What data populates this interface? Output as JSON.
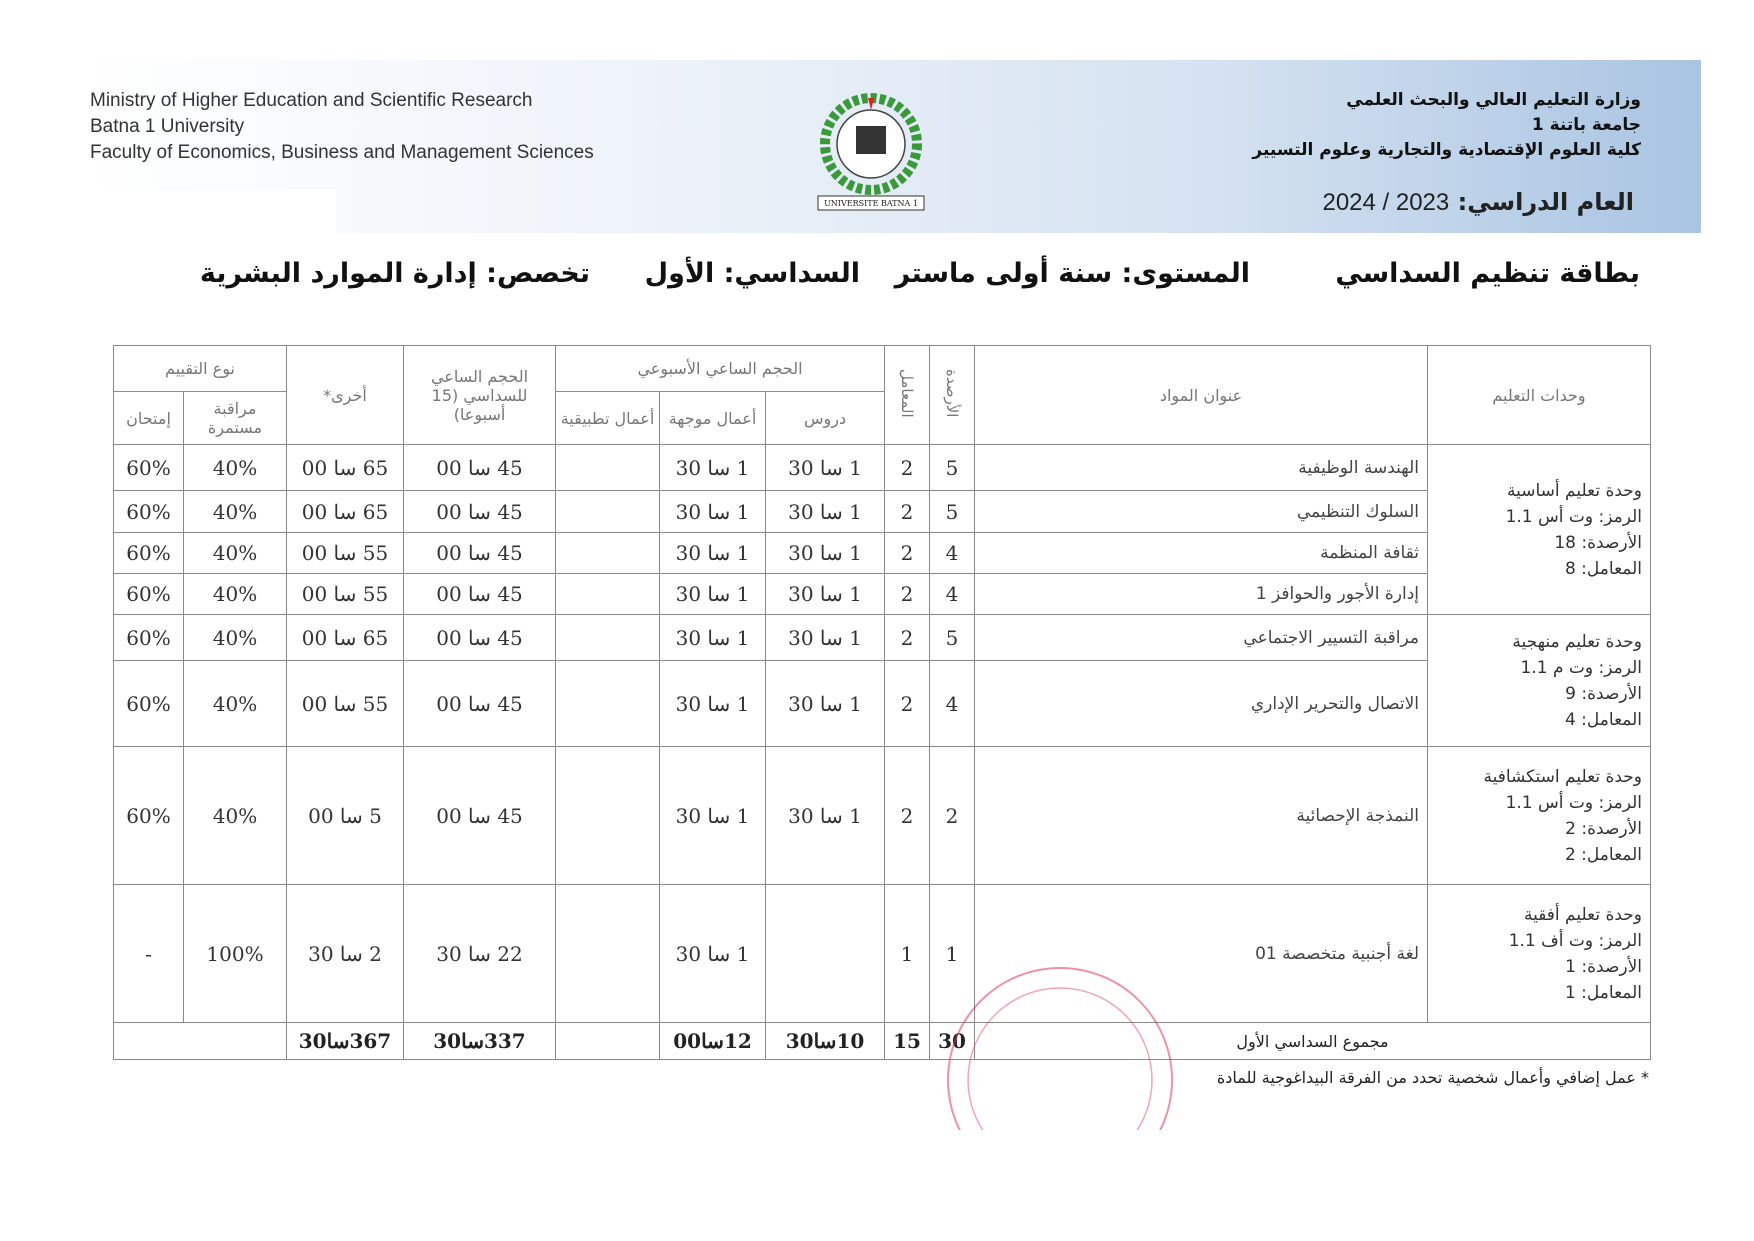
{
  "header": {
    "en_lines": [
      "Ministry of Higher Education and Scientific Research",
      "Batna 1 University",
      "Faculty of Economics, Business and Management Sciences"
    ],
    "ar_lines": [
      "وزارة التعليم العالي والبحث العلمي",
      "جامعة باتنة 1",
      "كلية العلوم الإقتصادية والتجارية وعلوم التسيير"
    ],
    "year_label": "العام الدراسي:",
    "year_value": "2024 / 2023",
    "logo_text": "UNIVERSITE BATNA 1",
    "band_color": "#a9c4e2"
  },
  "titles": {
    "card": "بطاقة تنظيم السداسي",
    "level": "المستوى: سنة أولى ماستر",
    "semester": "السداسي: الأول",
    "specialty": "تخصص: إدارة الموارد البشرية"
  },
  "table": {
    "headers": {
      "units": "وحدات التعليم",
      "subject": "عنوان المواد",
      "credits": "الأرصدة",
      "coef": "المعامل",
      "weekly": "الحجم الساعي الأسبوعي",
      "lectures": "دروس",
      "td": "أعمال موجهة",
      "tp": "أعمال تطبيقية",
      "semester_volume": "الحجم الساعي للسداسي (15 أسبوعا)",
      "other": "أخرى*",
      "eval": "نوع التقييم",
      "continuous": "مراقبة مستمرة",
      "exam": "إمتحان"
    },
    "units": [
      {
        "lines": [
          "وحدة تعليم أساسية",
          "الرمز: وت أس 1.1",
          "الأرصدة: 18",
          "المعامل: 8"
        ]
      },
      {
        "lines": [
          "وحدة تعليم منهجية",
          "الرمز: وت م 1.1",
          "الأرصدة: 9",
          "المعامل: 4"
        ]
      },
      {
        "lines": [
          "وحدة تعليم استكشافية",
          "الرمز: وت أس 1.1",
          "الأرصدة: 2",
          "المعامل: 2"
        ]
      },
      {
        "lines": [
          "وحدة تعليم أفقية",
          "الرمز: وت أف 1.1",
          "الأرصدة: 1",
          "المعامل: 1"
        ]
      }
    ],
    "rows": [
      {
        "subject": "الهندسة الوظيفية",
        "credits": "5",
        "coef": "2",
        "lectures": "1 سا 30",
        "td": "1 سا 30",
        "tp": "",
        "semester": "45 سا 00",
        "other": "65 سا 00",
        "continuous": "40%",
        "exam": "60%"
      },
      {
        "subject": "السلوك التنظيمي",
        "credits": "5",
        "coef": "2",
        "lectures": "1 سا 30",
        "td": "1 سا 30",
        "tp": "",
        "semester": "45 سا 00",
        "other": "65 سا 00",
        "continuous": "40%",
        "exam": "60%"
      },
      {
        "subject": "ثقافة المنظمة",
        "credits": "4",
        "coef": "2",
        "lectures": "1 سا 30",
        "td": "1 سا 30",
        "tp": "",
        "semester": "45 سا 00",
        "other": "55 سا 00",
        "continuous": "40%",
        "exam": "60%"
      },
      {
        "subject": "إدارة الأجور والحوافز 1",
        "credits": "4",
        "coef": "2",
        "lectures": "1 سا 30",
        "td": "1 سا 30",
        "tp": "",
        "semester": "45 سا 00",
        "other": "55 سا 00",
        "continuous": "40%",
        "exam": "60%"
      },
      {
        "subject": "مراقبة التسيير الاجتماعي",
        "credits": "5",
        "coef": "2",
        "lectures": "1 سا 30",
        "td": "1 سا 30",
        "tp": "",
        "semester": "45 سا 00",
        "other": "65 سا 00",
        "continuous": "40%",
        "exam": "60%"
      },
      {
        "subject": "الاتصال والتحرير الإداري",
        "credits": "4",
        "coef": "2",
        "lectures": "1 سا 30",
        "td": "1 سا 30",
        "tp": "",
        "semester": "45 سا 00",
        "other": "55 سا 00",
        "continuous": "40%",
        "exam": "60%"
      },
      {
        "subject": "النمذجة الإحصائية",
        "credits": "2",
        "coef": "2",
        "lectures": "1 سا 30",
        "td": "1 سا 30",
        "tp": "",
        "semester": "45 سا 00",
        "other": "5 سا 00",
        "continuous": "40%",
        "exam": "60%"
      },
      {
        "subject": "لغة أجنبية متخصصة 01",
        "credits": "1",
        "coef": "1",
        "lectures": "",
        "td": "1 سا 30",
        "tp": "",
        "semester": "22 سا 30",
        "other": "2 سا 30",
        "continuous": "100%",
        "exam": "-"
      }
    ],
    "total": {
      "label": "مجموع السداسي الأول",
      "credits": "30",
      "coef": "15",
      "lectures": "10سا30",
      "td": "12سا00",
      "tp": "",
      "semester": "337سا30",
      "other": "367سا30"
    }
  },
  "footnote": "* عمل إضافي وأعمال شخصية تحدد من الفرقة البيداغوجية للمادة",
  "stamp_color": "#e03a5a"
}
